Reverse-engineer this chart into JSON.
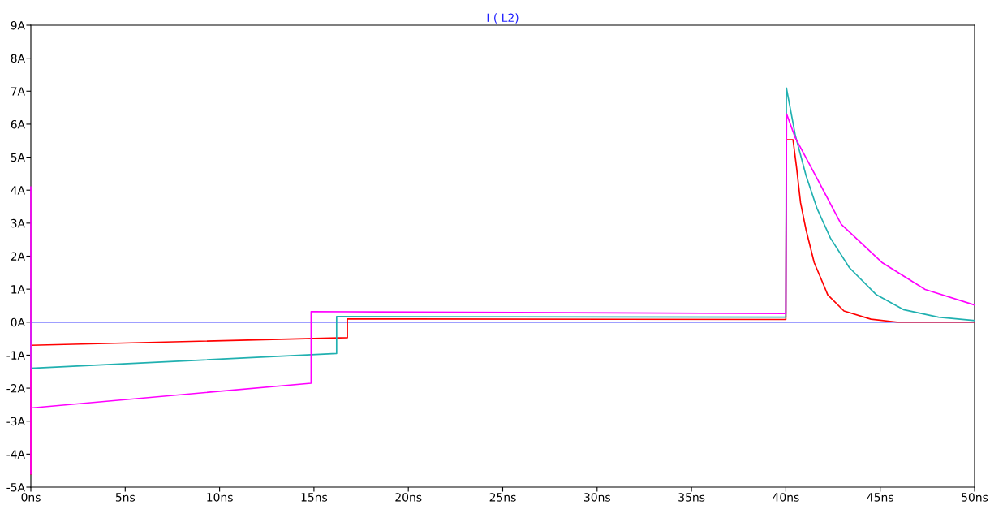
{
  "chart_data": {
    "type": "line",
    "title": "I ( L2)",
    "xlim": [
      0,
      50
    ],
    "ylim": [
      -5,
      9
    ],
    "xticks": [
      {
        "value": 0,
        "label": "0ns"
      },
      {
        "value": 5,
        "label": "5ns"
      },
      {
        "value": 10,
        "label": "10ns"
      },
      {
        "value": 15,
        "label": "15ns"
      },
      {
        "value": 20,
        "label": "20ns"
      },
      {
        "value": 25,
        "label": "25ns"
      },
      {
        "value": 30,
        "label": "30ns"
      },
      {
        "value": 35,
        "label": "35ns"
      },
      {
        "value": 40,
        "label": "40ns"
      },
      {
        "value": 45,
        "label": "45ns"
      },
      {
        "value": 50,
        "label": "50ns"
      }
    ],
    "yticks": [
      {
        "value": -5,
        "label": "-5A"
      },
      {
        "value": -4,
        "label": "-4A"
      },
      {
        "value": -3,
        "label": "-3A"
      },
      {
        "value": -2,
        "label": "-2A"
      },
      {
        "value": -1,
        "label": "-1A"
      },
      {
        "value": 0,
        "label": "0A"
      },
      {
        "value": 1,
        "label": "1A"
      },
      {
        "value": 2,
        "label": "2A"
      },
      {
        "value": 3,
        "label": "3A"
      },
      {
        "value": 4,
        "label": "4A"
      },
      {
        "value": 5,
        "label": "5A"
      },
      {
        "value": 6,
        "label": "6A"
      },
      {
        "value": 7,
        "label": "7A"
      },
      {
        "value": 8,
        "label": "8A"
      },
      {
        "value": 9,
        "label": "9A"
      }
    ],
    "grid": false,
    "marker": "none",
    "line_style": "solid",
    "series": [
      {
        "color": "#ff00ff",
        "x": [
          0,
          0,
          0,
          0,
          14.85,
          14.85,
          40,
          40.04,
          40.5,
          41.65,
          42.94,
          45.09,
          47.38,
          50
        ],
        "values": [
          0,
          4.1,
          -4.6,
          -2.6,
          -1.85,
          0.32,
          0.26,
          6.31,
          5.59,
          4.36,
          2.96,
          1.81,
          0.99,
          0.52
        ]
      },
      {
        "color": "#20b0b0",
        "x": [
          0,
          0,
          16.2,
          16.2,
          40,
          40.03,
          40.5,
          41.07,
          41.65,
          42.36,
          43.37,
          44.8,
          46.23,
          48.09,
          50
        ],
        "values": [
          0,
          -1.4,
          -0.95,
          0.17,
          0.15,
          7.1,
          5.67,
          4.44,
          3.45,
          2.55,
          1.65,
          0.83,
          0.38,
          0.15,
          0.05
        ]
      },
      {
        "color": "#ff0000",
        "x": [
          0,
          0,
          16.77,
          16.77,
          40,
          40.03,
          40.38,
          40.57,
          40.78,
          41.07,
          41.5,
          42.22,
          43.08,
          44.51,
          45.9,
          50
        ],
        "values": [
          -4.6,
          -0.7,
          -0.47,
          0.1,
          0.08,
          5.53,
          5.53,
          4.68,
          3.62,
          2.8,
          1.81,
          0.83,
          0.34,
          0.09,
          0,
          0
        ]
      },
      {
        "color": "#4040ff",
        "x": [
          0,
          50
        ],
        "values": [
          0,
          0
        ]
      }
    ]
  }
}
